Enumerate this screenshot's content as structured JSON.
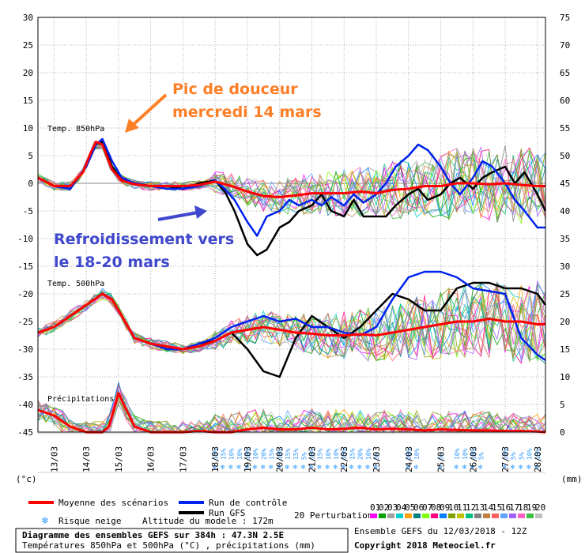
{
  "chart_data": {
    "type": "line",
    "axes": {
      "left_ticks": [
        "30",
        "25",
        "20",
        "15",
        "10",
        "5",
        "0",
        "-5",
        "-10",
        "-15",
        "-20",
        "-25",
        "-30",
        "-35",
        "-40",
        "-45"
      ],
      "right_ticks": [
        "75",
        "70",
        "65",
        "60",
        "55",
        "50",
        "45",
        "40",
        "35",
        "30",
        "25",
        "20",
        "15",
        "10",
        "5",
        "0"
      ],
      "left_unit": "(°c)",
      "right_unit": "(mm)",
      "ylim_left": [
        -45,
        30
      ],
      "ylim_right": [
        0,
        75
      ],
      "x_ticks": [
        "13/03",
        "14/03",
        "15/03",
        "16/03",
        "17/03",
        "18/03",
        "19/03",
        "20/03",
        "21/03",
        "22/03",
        "23/03",
        "24/03",
        "25/03",
        "26/03",
        "27/03",
        "28/03"
      ],
      "xlim": [
        12.5,
        28.25
      ],
      "grid": true
    },
    "panels": {
      "t850": "Temp. 850hPa",
      "t500": "Temp. 500hPa",
      "precip": "Précipitations"
    },
    "series": [
      {
        "name": "Moyenne des scénarios",
        "color": "#ff0000",
        "panel": "t850",
        "x": [
          12.5,
          13,
          13.5,
          13.9,
          14.1,
          14.3,
          14.5,
          14.8,
          15.1,
          15.5,
          16,
          16.5,
          17,
          17.5,
          18,
          18.5,
          19,
          19.5,
          20,
          20.5,
          21,
          21.5,
          22,
          22.5,
          23,
          23.5,
          24,
          24.5,
          25,
          25.5,
          26,
          26.5,
          27,
          27.5,
          28,
          28.25
        ],
        "y": [
          1,
          -0.5,
          -0.5,
          2,
          5,
          7.5,
          7,
          2.5,
          0.5,
          -0.2,
          -0.5,
          -0.5,
          -0.5,
          -0.3,
          0.3,
          -0.5,
          -1.5,
          -2.3,
          -2.5,
          -2.2,
          -1.8,
          -1.8,
          -1.8,
          -1.5,
          -1.8,
          -1.2,
          -1,
          -0.5,
          -0.5,
          0,
          0,
          -0.2,
          0,
          -0.3,
          -0.5,
          -0.5
        ]
      },
      {
        "name": "Run de contrôle",
        "color": "#0022ee",
        "panel": "t850",
        "x": [
          12.5,
          13,
          13.5,
          14,
          14.3,
          14.5,
          14.8,
          15.1,
          15.5,
          16,
          16.5,
          17,
          17.5,
          18,
          18.3,
          18.6,
          19,
          19.3,
          19.6,
          20,
          20.3,
          20.6,
          21,
          21.3,
          21.6,
          22,
          22.3,
          22.6,
          23,
          23.3,
          23.6,
          24,
          24.3,
          24.6,
          25,
          25.3,
          25.6,
          26,
          26.3,
          26.6,
          27,
          27.3,
          27.6,
          28,
          28.25
        ],
        "y": [
          1,
          -0.5,
          -1,
          3,
          7,
          8,
          4,
          1,
          0,
          -0.5,
          -1,
          -1,
          -0.5,
          0.5,
          -1,
          -3,
          -7,
          -9.5,
          -6,
          -5,
          -3,
          -4,
          -3,
          -4,
          -2.5,
          -4,
          -2,
          -3.5,
          -2,
          0,
          3,
          5,
          7,
          6,
          3,
          0,
          -2,
          1,
          4,
          3,
          0,
          -3,
          -5,
          -8,
          -8
        ]
      },
      {
        "name": "Run GFS",
        "color": "#000000",
        "panel": "t850",
        "x": [
          12.5,
          13,
          13.5,
          14,
          14.3,
          14.5,
          14.8,
          15.1,
          15.5,
          16,
          16.5,
          17,
          17.5,
          18,
          18.3,
          18.6,
          19,
          19.3,
          19.6,
          20,
          20.3,
          20.6,
          21,
          21.3,
          21.6,
          22,
          22.3,
          22.6,
          23,
          23.3,
          23.6,
          24,
          24.3,
          24.6,
          25,
          25.3,
          25.6,
          26,
          26.3,
          26.6,
          27,
          27.3,
          27.6,
          28,
          28.25
        ],
        "y": [
          1,
          -0.5,
          -1,
          3,
          7,
          7.5,
          3,
          0.5,
          0,
          -0.5,
          -0.5,
          -1,
          0,
          0.5,
          -1.5,
          -5,
          -11,
          -13,
          -12,
          -8,
          -7,
          -5,
          -4,
          -2,
          -5,
          -6,
          -3,
          -6,
          -6,
          -6,
          -4,
          -2,
          -1,
          -3,
          -2,
          0,
          1,
          -1,
          1,
          2,
          3,
          0,
          2,
          -2,
          -5
        ]
      },
      {
        "name": "Moyenne des scénarios",
        "color": "#ff0000",
        "panel": "t500",
        "x": [
          12.5,
          13,
          13.5,
          14,
          14.5,
          14.8,
          15.1,
          15.5,
          16,
          16.5,
          17,
          17.5,
          18,
          18.5,
          19,
          19.5,
          20,
          20.5,
          21,
          21.5,
          22,
          22.5,
          23,
          23.5,
          24,
          24.5,
          25,
          25.5,
          26,
          26.5,
          27,
          27.5,
          28,
          28.25
        ],
        "y": [
          -27,
          -26,
          -24,
          -22,
          -20,
          -21,
          -24,
          -28,
          -29,
          -29.5,
          -30,
          -29.5,
          -28.5,
          -27,
          -26.5,
          -26,
          -26.5,
          -27,
          -27.2,
          -27.5,
          -27.5,
          -27.3,
          -27.5,
          -27,
          -26.5,
          -26,
          -25.5,
          -25,
          -25,
          -24.5,
          -25,
          -25,
          -25.5,
          -25.5
        ]
      },
      {
        "name": "Run de contrôle",
        "color": "#0022ee",
        "panel": "t500",
        "x": [
          12.5,
          13,
          13.5,
          14,
          14.5,
          14.8,
          15.1,
          15.5,
          16,
          16.5,
          17,
          17.5,
          18,
          18.5,
          19,
          19.5,
          20,
          20.5,
          21,
          21.5,
          22,
          22.5,
          23,
          23.5,
          24,
          24.5,
          25,
          25.5,
          26,
          26.5,
          27,
          27.5,
          28,
          28.25
        ],
        "y": [
          -27,
          -26,
          -24,
          -22,
          -20,
          -21,
          -24,
          -28,
          -29,
          -30,
          -30,
          -29,
          -28,
          -26,
          -25,
          -24,
          -25,
          -24.5,
          -26,
          -26,
          -27,
          -27.5,
          -26,
          -21,
          -17,
          -16,
          -16,
          -17,
          -19,
          -19.5,
          -20,
          -28,
          -31,
          -32
        ]
      },
      {
        "name": "Run GFS",
        "color": "#000000",
        "panel": "t500",
        "x": [
          12.5,
          13,
          13.5,
          14,
          14.5,
          14.8,
          15.1,
          15.5,
          16,
          16.5,
          17,
          17.5,
          18,
          18.5,
          19,
          19.5,
          20,
          20.5,
          21,
          21.5,
          22,
          22.5,
          23,
          23.5,
          24,
          24.5,
          25,
          25.5,
          26,
          26.5,
          27,
          27.5,
          28,
          28.25
        ],
        "y": [
          -27,
          -26,
          -24,
          -22,
          -20,
          -21,
          -24,
          -28,
          -29,
          -30,
          -30,
          -29,
          -28.5,
          -27,
          -30,
          -34,
          -35,
          -28,
          -24,
          -26,
          -28,
          -26,
          -23,
          -20,
          -21,
          -23,
          -23,
          -19,
          -18,
          -18,
          -19,
          -19,
          -20,
          -22
        ]
      },
      {
        "name": "Moyenne des scénarios",
        "color": "#ff0000",
        "panel": "precip",
        "x": [
          12.5,
          13,
          13.5,
          14,
          14.5,
          14.7,
          15,
          15.5,
          16,
          16.5,
          17,
          17.5,
          18,
          18.5,
          19,
          19.5,
          20,
          20.5,
          21,
          21.5,
          22,
          22.5,
          23,
          23.5,
          24,
          24.5,
          25,
          25.5,
          26,
          26.5,
          27,
          27.5,
          28,
          28.25
        ],
        "y": [
          4,
          3,
          1,
          0,
          0,
          1,
          7,
          1,
          0,
          0,
          0,
          0.2,
          0,
          0,
          0.5,
          0.8,
          0.5,
          0.5,
          0.8,
          0.5,
          0.6,
          0.8,
          0.5,
          0.6,
          0.5,
          0.3,
          0.5,
          0.4,
          0.3,
          0.3,
          0.2,
          0.2,
          0.1,
          0
        ]
      }
    ],
    "annotations": [
      {
        "text": "Pic de douceur",
        "color": "#ff7f27"
      },
      {
        "text": "mercredi 14 mars",
        "color": "#ff7f27"
      },
      {
        "text": "Refroidissement vers",
        "color": "#3f48cc"
      },
      {
        "text": "le 18-20 mars",
        "color": "#3f48cc"
      }
    ],
    "snow_risk": [
      {
        "x": 18.0,
        "pct": "15%"
      },
      {
        "x": 18.25,
        "pct": "15%"
      },
      {
        "x": 18.5,
        "pct": "10%"
      },
      {
        "x": 18.75,
        "pct": "10%"
      },
      {
        "x": 19.0,
        "pct": "10%"
      },
      {
        "x": 19.25,
        "pct": "10%"
      },
      {
        "x": 19.5,
        "pct": "20%"
      },
      {
        "x": 19.75,
        "pct": "15%"
      },
      {
        "x": 20.0,
        "pct": "10%"
      },
      {
        "x": 20.25,
        "pct": "15%"
      },
      {
        "x": 20.5,
        "pct": "15%"
      },
      {
        "x": 20.75,
        "pct": "5%"
      },
      {
        "x": 21.0,
        "pct": "10%"
      },
      {
        "x": 21.25,
        "pct": "15%"
      },
      {
        "x": 21.5,
        "pct": "10%"
      },
      {
        "x": 21.75,
        "pct": "10%"
      },
      {
        "x": 22.0,
        "pct": "15%"
      },
      {
        "x": 22.25,
        "pct": "15%"
      },
      {
        "x": 22.5,
        "pct": "20%"
      },
      {
        "x": 22.75,
        "pct": "10%"
      },
      {
        "x": 23.0,
        "pct": "5%"
      },
      {
        "x": 24.0,
        "pct": "20%"
      },
      {
        "x": 24.25,
        "pct": "10%"
      },
      {
        "x": 25.0,
        "pct": "5%"
      },
      {
        "x": 25.5,
        "pct": "10%"
      },
      {
        "x": 25.75,
        "pct": "10%"
      },
      {
        "x": 26.0,
        "pct": "10%"
      },
      {
        "x": 26.25,
        "pct": "5%"
      },
      {
        "x": 27.0,
        "pct": "10%"
      },
      {
        "x": 27.25,
        "pct": "5%"
      },
      {
        "x": 27.5,
        "pct": "5%"
      },
      {
        "x": 27.75,
        "pct": "10%"
      },
      {
        "x": 28.0,
        "pct": "15%"
      }
    ]
  },
  "legend": {
    "mean": "Moyenne des scénarios",
    "control": "Run de contrôle",
    "gfs": "Run GFS",
    "snow": "Risque neige",
    "altitude": "Altitude du modele : 172m",
    "perturbations": "20 Perturbations",
    "pert_numbers": [
      "01",
      "02",
      "03",
      "04",
      "05",
      "06",
      "07",
      "08",
      "09",
      "10",
      "11",
      "12",
      "13",
      "14",
      "15",
      "16",
      "17",
      "18",
      "19",
      "20"
    ],
    "pert_colors": [
      "#ff00ff",
      "#00a000",
      "#a0a0a0",
      "#00d0d0",
      "#ffa000",
      "#008080",
      "#80ff00",
      "#ff0080",
      "#0080ff",
      "#80a000",
      "#c0c000",
      "#00c080",
      "#808080",
      "#c08040",
      "#ff6060",
      "#60a0ff",
      "#a060ff",
      "#ff60c0",
      "#40c040",
      "#c0c0c0"
    ]
  },
  "footer": {
    "title": "Diagramme des ensembles GEFS sur 384h : 47.3N 2.5E",
    "subtitle": "Températures 850hPa et 500hPa (°C) , précipitations (mm)",
    "ensemble": "Ensemble GEFS du 12/03/2018 - 12Z",
    "copyright": "Copyright 2018 Meteociel.fr"
  },
  "colors": {
    "grid": "#a0a0a0",
    "mean": "#ff0000",
    "control": "#0022ee",
    "gfs": "#000000",
    "orange": "#ff7f27",
    "blue": "#3f48cc",
    "snow": "#3399ff"
  }
}
